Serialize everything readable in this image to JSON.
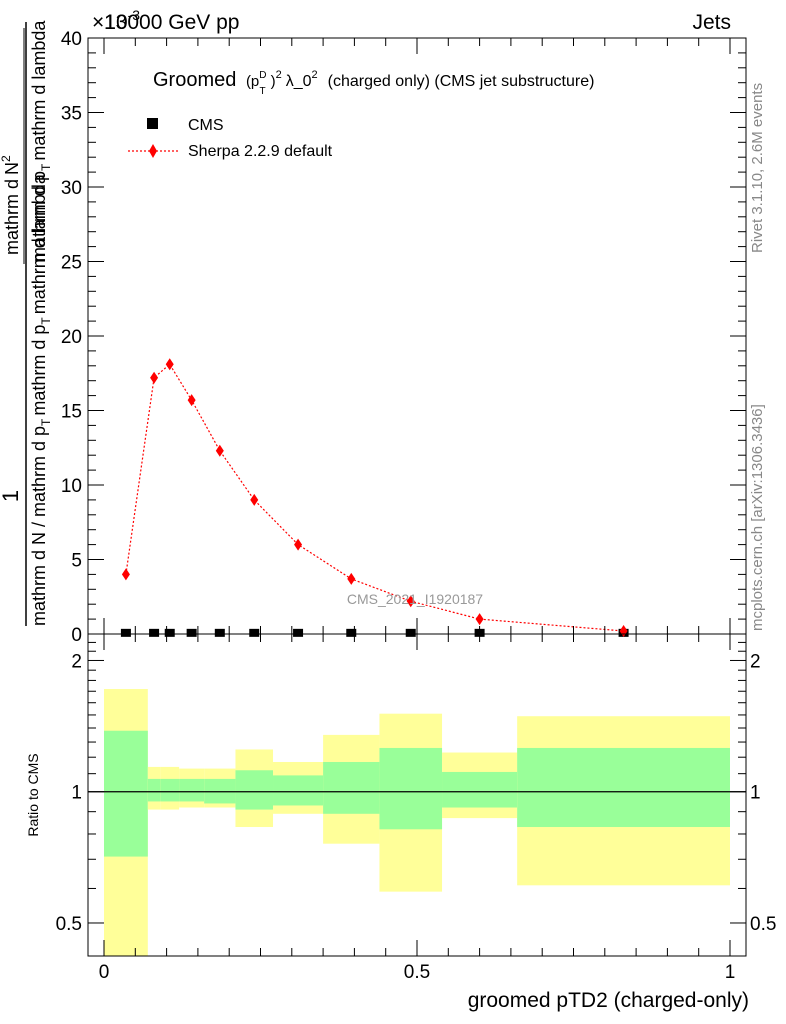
{
  "header": {
    "left_label": "13000 GeV pp",
    "right_label": "Jets",
    "exponent_label": "×10",
    "exponent_power": "-3"
  },
  "title": {
    "prefix": "Groomed",
    "p_sym": "(p",
    "p_sup": "D",
    "p_sub": "T",
    "close_paren": ")",
    "power": "2",
    "lambda_text": "λ_0",
    "lambda_power": "2",
    "suffix": "(charged only) (CMS jet substructure)"
  },
  "legend": {
    "cms": "CMS",
    "sherpa": "Sherpa 2.2.9 default"
  },
  "y_axis_label": {
    "numerator": "1",
    "denominator": "mathrm d N / mathrm d p",
    "denominator_sub": "T",
    "denominator_tail": "mathrm d p",
    "tail_sub": "T",
    "tail_end": "mathrm d lambda",
    "main_num_a": "mathrm d",
    "main_num_b": "N",
    "main_num_sup": "2",
    "main_den_a": "mathrm d p",
    "main_den_sub": "T",
    "main_den_b": "mathrm d lambda"
  },
  "ratio_label": "Ratio to CMS",
  "watermark": "CMS_2021_I1920187",
  "side_text": {
    "rivet": "Rivet 3.1.10,  2.6M events",
    "mcplots": "mcplots.cern.ch [arXiv:1306.3436]"
  },
  "x_axis_title": "groomed pTD2 (charged-only)",
  "colors": {
    "sherpa": "#ff0000",
    "cms": "#000000",
    "band_inner": "#99ff99",
    "band_outer": "#ffff99",
    "side_text": "#888888"
  },
  "chart_data": [
    {
      "type": "line",
      "name": "main",
      "xlim": [
        0,
        1
      ],
      "ylim": [
        0,
        40
      ],
      "y_scale_note": "×10^-3",
      "y_ticks": [
        0,
        5,
        10,
        15,
        20,
        25,
        30,
        35,
        40
      ],
      "y_tick_labels": [
        "0",
        "5",
        "10",
        "15",
        "20",
        "25",
        "30",
        "35",
        "40"
      ],
      "x_ticks": [
        0,
        0.5,
        1
      ],
      "bins": [
        0,
        0.07,
        0.09,
        0.12,
        0.16,
        0.21,
        0.27,
        0.35,
        0.44,
        0.54,
        0.66,
        1.0
      ],
      "series": [
        {
          "name": "CMS",
          "marker": "square",
          "x": [
            0.035,
            0.08,
            0.105,
            0.14,
            0.185,
            0.24,
            0.31,
            0.395,
            0.49,
            0.6,
            0.83
          ],
          "values": [
            0.01,
            0.01,
            0.01,
            0.01,
            0.01,
            0.01,
            0.01,
            0.01,
            0.01,
            0.01,
            0.01
          ]
        },
        {
          "name": "Sherpa 2.2.9 default",
          "marker": "diamond",
          "style": "dotted",
          "x": [
            0.035,
            0.08,
            0.105,
            0.14,
            0.185,
            0.24,
            0.31,
            0.395,
            0.49,
            0.6,
            0.83
          ],
          "values": [
            4.0,
            17.2,
            18.1,
            15.7,
            12.3,
            9.0,
            6.0,
            3.7,
            2.2,
            1.0,
            0.2
          ]
        }
      ]
    },
    {
      "type": "area",
      "name": "ratio",
      "xlim": [
        0,
        1
      ],
      "ylim": [
        0.42,
        2.3
      ],
      "y_scale": "log",
      "y_ticks": [
        0.5,
        1,
        2
      ],
      "y_tick_labels": [
        "0.5",
        "1",
        "2"
      ],
      "x_ticks": [
        0,
        0.5,
        1
      ],
      "x_tick_labels": [
        "0",
        "0.5",
        "1"
      ],
      "reference_line": 1,
      "bins": [
        0,
        0.07,
        0.09,
        0.12,
        0.16,
        0.21,
        0.27,
        0.35,
        0.44,
        0.54,
        0.66,
        1.0
      ],
      "inner_band": {
        "low": [
          0.71,
          0.95,
          0.95,
          0.95,
          0.94,
          0.91,
          0.93,
          0.89,
          0.82,
          0.92,
          0.83
        ],
        "high": [
          1.38,
          1.07,
          1.07,
          1.07,
          1.07,
          1.12,
          1.09,
          1.17,
          1.26,
          1.11,
          1.26
        ]
      },
      "outer_band": {
        "low": [
          0.42,
          0.91,
          0.91,
          0.92,
          0.92,
          0.83,
          0.89,
          0.76,
          0.59,
          0.87,
          0.61
        ],
        "high": [
          1.72,
          1.14,
          1.14,
          1.13,
          1.13,
          1.25,
          1.17,
          1.35,
          1.51,
          1.23,
          1.49
        ]
      }
    }
  ]
}
